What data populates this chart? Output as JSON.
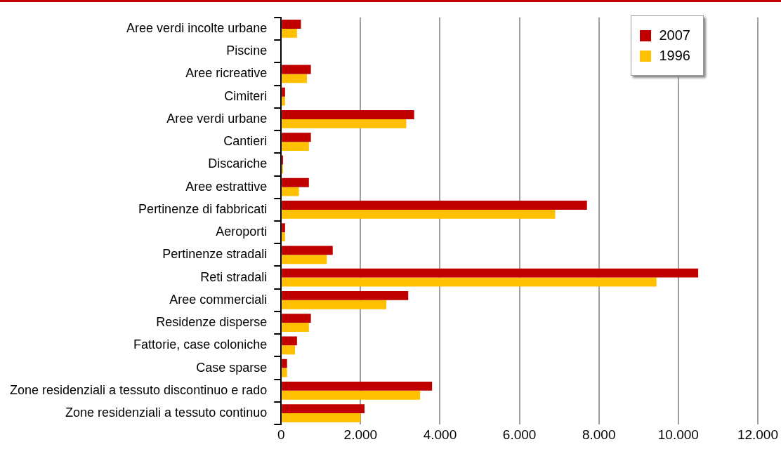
{
  "chart_data": {
    "type": "bar",
    "orientation": "horizontal",
    "categories": [
      "Aree verdi incolte urbane",
      "Piscine",
      "Aree ricreative",
      "Cimiteri",
      "Aree verdi urbane",
      "Cantieri",
      "Discariche",
      "Aree estrattive",
      "Pertinenze di fabbricati",
      "Aeroporti",
      "Pertinenze stradali",
      "Reti stradali",
      "Aree commerciali",
      "Residenze disperse",
      "Fattorie, case coloniche",
      "Case sparse",
      "Zone residenziali a tessuto discontinuo e rado",
      "Zone residenziali a tessuto continuo"
    ],
    "series": [
      {
        "name": "2007",
        "color": "#c00000",
        "values": [
          500,
          0,
          750,
          100,
          3350,
          750,
          50,
          700,
          7700,
          100,
          1300,
          10500,
          3200,
          750,
          400,
          150,
          3800,
          2100
        ]
      },
      {
        "name": "1996",
        "color": "#ffc000",
        "values": [
          400,
          0,
          650,
          100,
          3150,
          700,
          50,
          450,
          6900,
          100,
          1150,
          9450,
          2650,
          700,
          350,
          150,
          3500,
          2000
        ]
      }
    ],
    "xlim": [
      0,
      12000
    ],
    "xticks": [
      0,
      {
        "value": 2000,
        "label": "2.000"
      },
      {
        "value": 4000,
        "label": "4.000"
      },
      {
        "value": 6000,
        "label": "6.000"
      },
      {
        "value": 8000,
        "label": "8.000"
      },
      {
        "value": 10000,
        "label": "10.000"
      },
      {
        "value": 12000,
        "label": "12.000"
      }
    ],
    "grid": "x",
    "legend": "top right"
  }
}
